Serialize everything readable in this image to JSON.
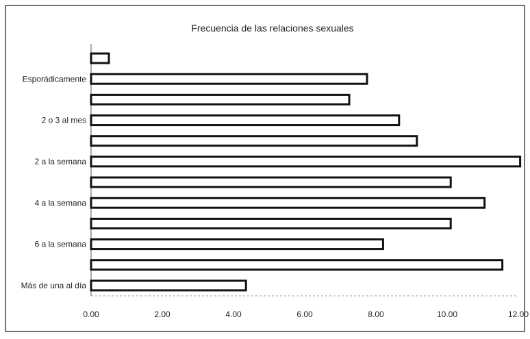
{
  "chart_data": {
    "type": "bar",
    "orientation": "horizontal",
    "title": "Frecuencia de las relaciones sexuales",
    "categories": [
      "Más de una al día",
      "",
      "6 a la semana",
      "",
      "4 a la semana",
      "",
      "2 a la semana",
      "",
      "2 o 3 al mes",
      "",
      "Esporádicamente",
      ""
    ],
    "values": [
      4.35,
      11.55,
      8.2,
      10.1,
      11.05,
      10.1,
      12.05,
      9.15,
      8.65,
      7.25,
      7.75,
      0.5
    ],
    "x_ticks": [
      "0.00",
      "2.00",
      "4.00",
      "6.00",
      "8.00",
      "10.00",
      "12.00"
    ],
    "xlim": [
      0,
      12
    ],
    "xlabel": "",
    "ylabel": "",
    "grid": false,
    "legend": "none",
    "colors": {
      "bar_fill": "#ffffff",
      "bar_stroke": "#111111",
      "frame": "#333333"
    }
  }
}
